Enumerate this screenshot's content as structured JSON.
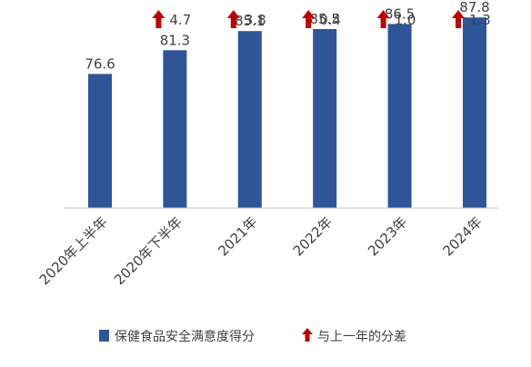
{
  "chart_data": {
    "type": "bar",
    "categories": [
      "2020年上半年",
      "2020年下半年",
      "2021年",
      "2022年",
      "2023年",
      "2024年"
    ],
    "series": [
      {
        "name": "保健食品安全满意度得分",
        "values": [
          76.6,
          81.3,
          85.1,
          85.5,
          86.5,
          87.8
        ],
        "color": "#2e5597"
      }
    ],
    "differences": {
      "name": "与上一年的分差",
      "values": [
        null,
        4.7,
        3.8,
        0.4,
        1.0,
        1.3
      ],
      "labels": [
        "",
        "4.7",
        "3.8",
        "0.4",
        "1.0",
        "1.3"
      ],
      "color": "#c00000",
      "icon": "up-arrow-icon"
    },
    "data_labels": [
      "76.6",
      "81.3",
      "85.1",
      "85.5",
      "86.5",
      "87.8"
    ],
    "title": "",
    "xlabel": "",
    "ylabel": "",
    "ylim": [
      50,
      90
    ],
    "grid": false,
    "legend": {
      "position": "bottom",
      "items": [
        "保健食品安全满意度得分",
        "与上一年的分差"
      ]
    }
  }
}
